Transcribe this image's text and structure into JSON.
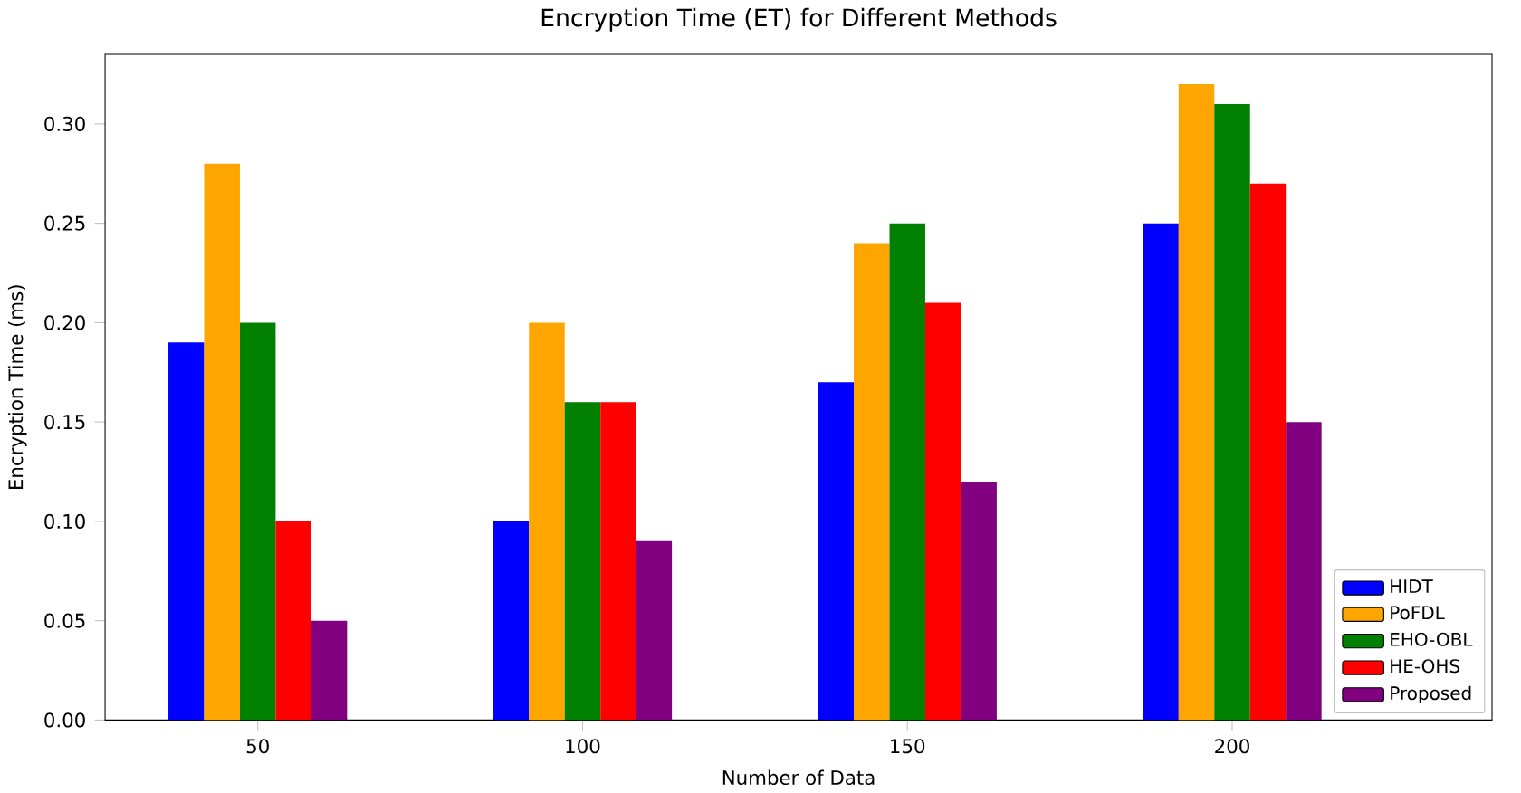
{
  "chart_data": {
    "type": "bar",
    "title": "Encryption Time (ET) for Different Methods",
    "xlabel": "Number of Data",
    "ylabel": "Encryption Time (ms)",
    "categories": [
      "50",
      "100",
      "150",
      "200"
    ],
    "series": [
      {
        "name": "HIDT",
        "color": "#0000ff",
        "values": [
          0.19,
          0.1,
          0.17,
          0.25
        ]
      },
      {
        "name": "PoFDL",
        "color": "#ffa500",
        "values": [
          0.28,
          0.2,
          0.24,
          0.32
        ]
      },
      {
        "name": "EHO-OBL",
        "color": "#008000",
        "values": [
          0.2,
          0.16,
          0.25,
          0.31
        ]
      },
      {
        "name": "HE-OHS",
        "color": "#ff0000",
        "values": [
          0.1,
          0.16,
          0.21,
          0.27
        ]
      },
      {
        "name": "Proposed",
        "color": "#800080",
        "values": [
          0.05,
          0.09,
          0.12,
          0.15
        ]
      }
    ],
    "ylim": [
      0,
      0.335
    ],
    "yticks": [
      {
        "value": 0,
        "label": "0.00"
      },
      {
        "value": 0.05,
        "label": "0.05"
      },
      {
        "value": 0.1,
        "label": "0.10"
      },
      {
        "value": 0.15,
        "label": "0.15"
      },
      {
        "value": 0.2,
        "label": "0.20"
      },
      {
        "value": 0.25,
        "label": "0.25"
      },
      {
        "value": 0.3,
        "label": "0.30"
      }
    ],
    "legend": "bottom right",
    "grid": false
  }
}
